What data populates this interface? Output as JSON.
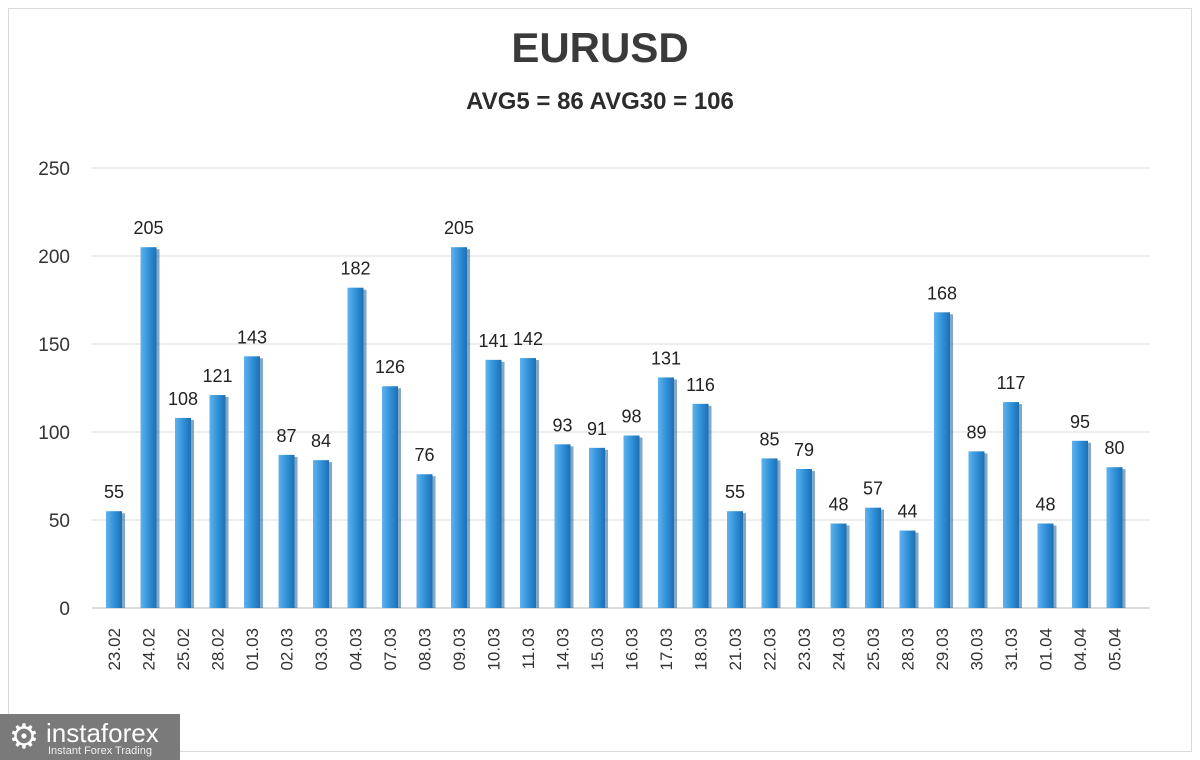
{
  "chart_data": {
    "type": "bar",
    "title": "EURUSD",
    "subtitle": "AVG5 = 86 AVG30 = 106",
    "categories": [
      "23.02",
      "24.02",
      "25.02",
      "28.02",
      "01.03",
      "02.03",
      "03.03",
      "04.03",
      "07.03",
      "08.03",
      "09.03",
      "10.03",
      "11.03",
      "14.03",
      "15.03",
      "16.03",
      "17.03",
      "18.03",
      "21.03",
      "22.03",
      "23.03",
      "24.03",
      "25.03",
      "28.03",
      "29.03",
      "30.03",
      "31.03",
      "01.04",
      "04.04",
      "05.04"
    ],
    "values": [
      55,
      205,
      108,
      121,
      143,
      87,
      84,
      182,
      126,
      76,
      205,
      141,
      142,
      93,
      91,
      98,
      131,
      116,
      55,
      85,
      79,
      48,
      57,
      44,
      168,
      89,
      117,
      48,
      95,
      80
    ],
    "yticks": [
      0,
      50,
      100,
      150,
      200,
      250
    ],
    "ylim": [
      0,
      250
    ],
    "grid": true,
    "bar_color": "#2e8fd6"
  },
  "logo": {
    "name": "instaforex",
    "tagline": "Instant Forex Trading",
    "icon": "gear-icon"
  }
}
